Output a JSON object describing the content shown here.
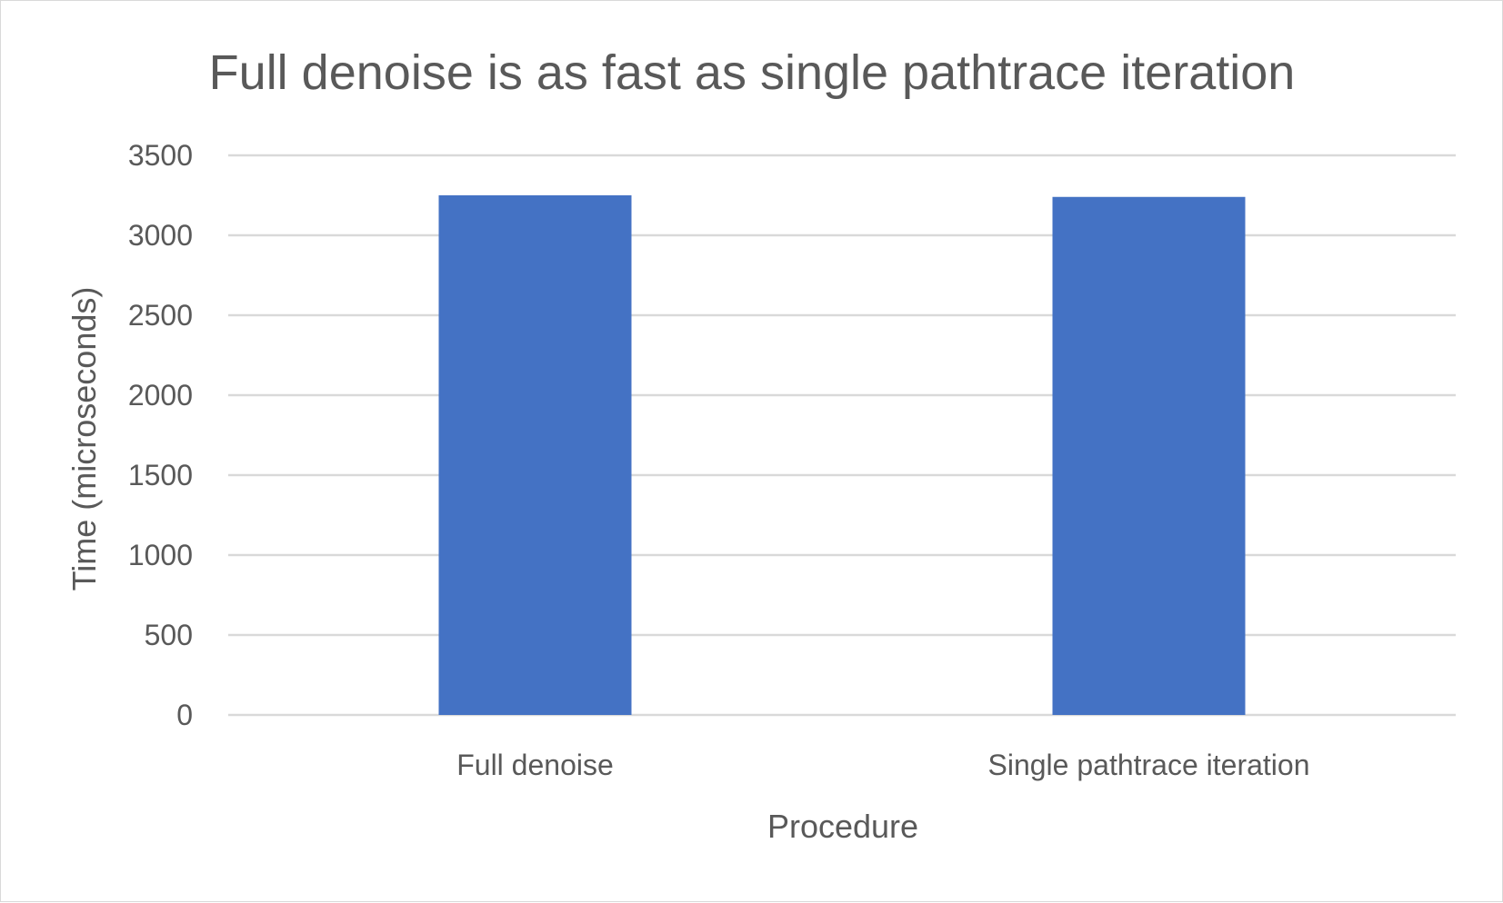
{
  "chart_data": {
    "type": "bar",
    "title": "Full denoise is as fast as single pathtrace iteration",
    "xlabel": "Procedure",
    "ylabel": "Time (microseconds)",
    "categories": [
      "Full denoise",
      "Single pathtrace iteration"
    ],
    "values": [
      3250,
      3240
    ],
    "ylim": [
      0,
      3500
    ],
    "yticks": [
      "0",
      "500",
      "1000",
      "1500",
      "2000",
      "2500",
      "3000",
      "3500"
    ],
    "grid": true,
    "legend": "none",
    "bar_color": "#4472C4",
    "grid_color": "#D9D9D9",
    "text_color": "#595959"
  }
}
